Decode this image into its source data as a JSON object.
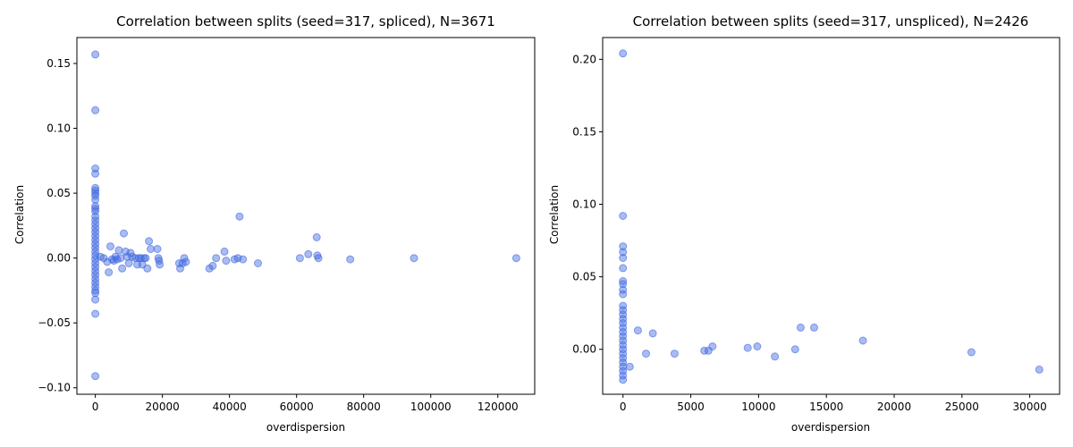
{
  "figure": {
    "marker_color": "#4169E1"
  },
  "chart_data": [
    {
      "type": "scatter",
      "title": "Correlation between splits (seed=317, spliced), N=3671",
      "xlabel": "overdispersion",
      "ylabel": "Correlation",
      "xlim": [
        -5500,
        131000
      ],
      "ylim": [
        -0.105,
        0.17
      ],
      "xticks": [
        0,
        20000,
        40000,
        60000,
        80000,
        100000,
        120000
      ],
      "yticks": [
        -0.1,
        -0.05,
        0.0,
        0.05,
        0.1,
        0.15
      ],
      "ytick_labels": [
        "−0.10",
        "−0.05",
        "0.00",
        "0.05",
        "0.10",
        "0.15"
      ],
      "grid": false,
      "points": [
        [
          0,
          0.157
        ],
        [
          0,
          0.114
        ],
        [
          0,
          0.069
        ],
        [
          0,
          0.065
        ],
        [
          0,
          0.054
        ],
        [
          0,
          0.052
        ],
        [
          0,
          0.05
        ],
        [
          0,
          0.048
        ],
        [
          0,
          0.045
        ],
        [
          0,
          0.04
        ],
        [
          0,
          0.038
        ],
        [
          0,
          0.036
        ],
        [
          0,
          0.032
        ],
        [
          0,
          0.029
        ],
        [
          0,
          0.026
        ],
        [
          0,
          0.023
        ],
        [
          0,
          0.02
        ],
        [
          0,
          0.017
        ],
        [
          0,
          0.014
        ],
        [
          0,
          0.011
        ],
        [
          0,
          0.008
        ],
        [
          0,
          0.005
        ],
        [
          0,
          0.002
        ],
        [
          0,
          -0.001
        ],
        [
          0,
          -0.004
        ],
        [
          0,
          -0.007
        ],
        [
          0,
          -0.01
        ],
        [
          0,
          -0.013
        ],
        [
          0,
          -0.016
        ],
        [
          0,
          -0.019
        ],
        [
          0,
          -0.022
        ],
        [
          0,
          -0.025
        ],
        [
          0,
          -0.027
        ],
        [
          0,
          -0.032
        ],
        [
          0,
          -0.043
        ],
        [
          0,
          -0.091
        ],
        [
          1500,
          0.001
        ],
        [
          2500,
          0.0
        ],
        [
          3500,
          -0.003
        ],
        [
          4000,
          -0.011
        ],
        [
          4500,
          0.009
        ],
        [
          5000,
          -0.001
        ],
        [
          5500,
          -0.002
        ],
        [
          6000,
          0.001
        ],
        [
          6500,
          -0.001
        ],
        [
          7000,
          0.006
        ],
        [
          7500,
          0.0
        ],
        [
          8000,
          -0.008
        ],
        [
          8500,
          0.019
        ],
        [
          9000,
          0.005
        ],
        [
          9500,
          0.001
        ],
        [
          10000,
          -0.004
        ],
        [
          10500,
          0.004
        ],
        [
          11000,
          0.001
        ],
        [
          12000,
          0.0
        ],
        [
          12500,
          -0.005
        ],
        [
          13000,
          0.0
        ],
        [
          13500,
          0.0
        ],
        [
          14000,
          -0.005
        ],
        [
          14500,
          0.0
        ],
        [
          15000,
          0.0
        ],
        [
          15500,
          -0.008
        ],
        [
          16000,
          0.013
        ],
        [
          16500,
          0.007
        ],
        [
          18500,
          0.007
        ],
        [
          18800,
          0.0
        ],
        [
          19000,
          -0.002
        ],
        [
          19200,
          -0.005
        ],
        [
          25000,
          -0.004
        ],
        [
          25300,
          -0.008
        ],
        [
          26000,
          -0.004
        ],
        [
          26500,
          0.0
        ],
        [
          27000,
          -0.003
        ],
        [
          34000,
          -0.008
        ],
        [
          35000,
          -0.006
        ],
        [
          36000,
          0.0
        ],
        [
          38500,
          0.005
        ],
        [
          39000,
          -0.002
        ],
        [
          41500,
          -0.001
        ],
        [
          42500,
          0.0
        ],
        [
          43000,
          0.032
        ],
        [
          44000,
          -0.001
        ],
        [
          48500,
          -0.004
        ],
        [
          61000,
          0.0
        ],
        [
          63500,
          0.003
        ],
        [
          66000,
          0.016
        ],
        [
          66200,
          0.002
        ],
        [
          66500,
          0.0
        ],
        [
          76000,
          -0.001
        ],
        [
          95000,
          0.0
        ],
        [
          125500,
          0.0
        ]
      ]
    },
    {
      "type": "scatter",
      "title": "Correlation between splits (seed=317, unspliced), N=2426",
      "xlabel": "overdispersion",
      "ylabel": "Correlation",
      "xlim": [
        -1500,
        32200
      ],
      "ylim": [
        -0.031,
        0.215
      ],
      "xticks": [
        0,
        5000,
        10000,
        15000,
        20000,
        25000,
        30000
      ],
      "yticks": [
        0.0,
        0.05,
        0.1,
        0.15,
        0.2
      ],
      "ytick_labels": [
        "0.00",
        "0.05",
        "0.10",
        "0.15",
        "0.20"
      ],
      "grid": false,
      "points": [
        [
          0,
          0.204
        ],
        [
          0,
          0.092
        ],
        [
          0,
          0.071
        ],
        [
          0,
          0.067
        ],
        [
          0,
          0.063
        ],
        [
          0,
          0.056
        ],
        [
          0,
          0.047
        ],
        [
          0,
          0.045
        ],
        [
          0,
          0.041
        ],
        [
          0,
          0.038
        ],
        [
          0,
          0.03
        ],
        [
          0,
          0.027
        ],
        [
          0,
          0.024
        ],
        [
          0,
          0.021
        ],
        [
          0,
          0.018
        ],
        [
          0,
          0.015
        ],
        [
          0,
          0.012
        ],
        [
          0,
          0.009
        ],
        [
          0,
          0.006
        ],
        [
          0,
          0.003
        ],
        [
          0,
          0.0
        ],
        [
          0,
          -0.003
        ],
        [
          0,
          -0.006
        ],
        [
          0,
          -0.009
        ],
        [
          0,
          -0.012
        ],
        [
          0,
          -0.015
        ],
        [
          0,
          -0.018
        ],
        [
          0,
          -0.021
        ],
        [
          500,
          -0.012
        ],
        [
          1100,
          0.013
        ],
        [
          1700,
          -0.003
        ],
        [
          2200,
          0.011
        ],
        [
          3800,
          -0.003
        ],
        [
          6000,
          -0.001
        ],
        [
          6300,
          -0.001
        ],
        [
          6600,
          0.002
        ],
        [
          9200,
          0.001
        ],
        [
          9900,
          0.002
        ],
        [
          11200,
          -0.005
        ],
        [
          12700,
          0.0
        ],
        [
          13100,
          0.015
        ],
        [
          14100,
          0.015
        ],
        [
          17700,
          0.006
        ],
        [
          25700,
          -0.002
        ],
        [
          30700,
          -0.014
        ]
      ]
    }
  ]
}
